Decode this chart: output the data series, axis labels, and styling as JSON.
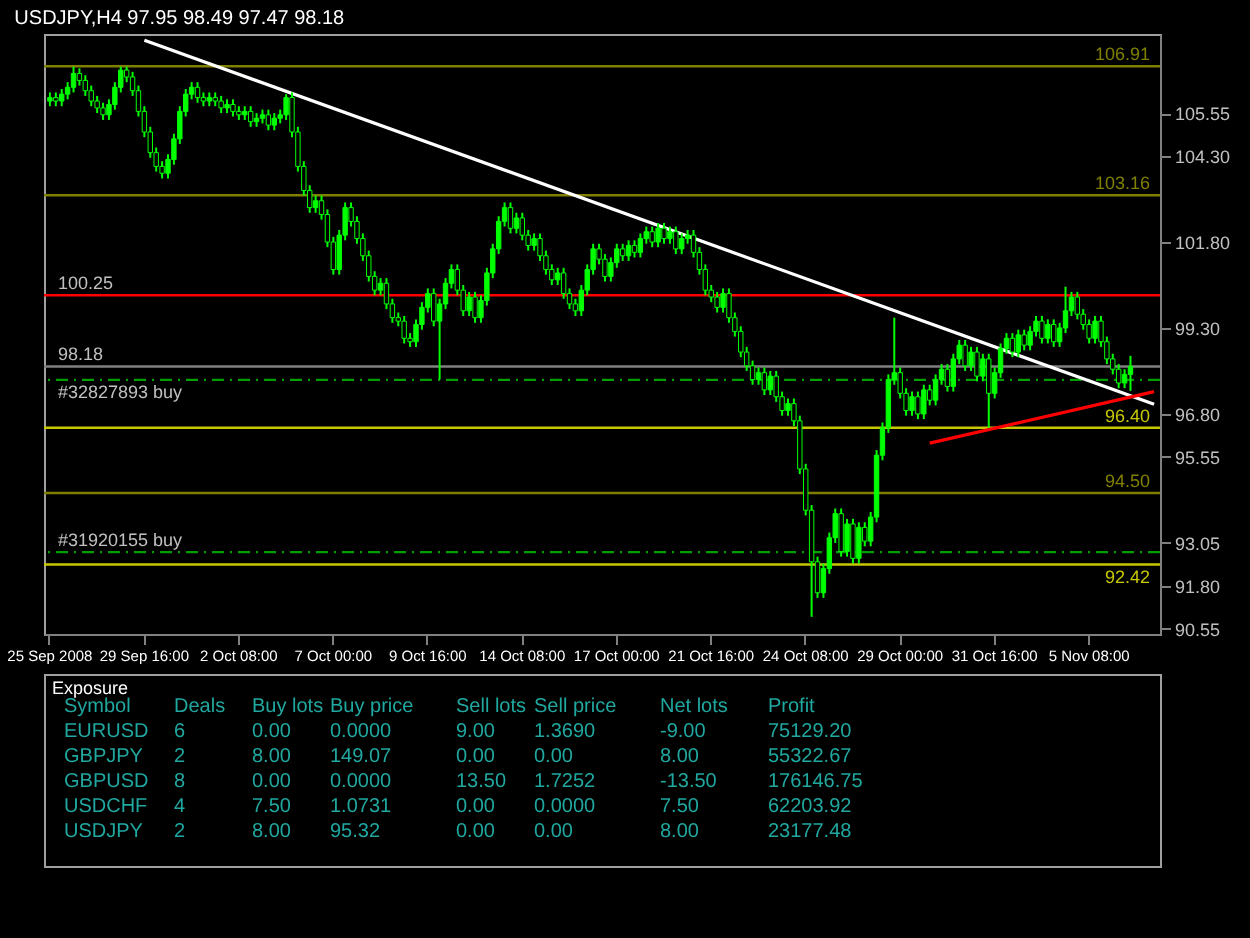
{
  "chart_data": [
    {
      "type": "candlestick",
      "title": "USDJPY,H4  97.95 98.49 97.47 98.18",
      "color": "#00ff00",
      "categories": [
        "25 Sep 2008",
        null,
        null,
        null,
        null,
        null,
        null,
        null,
        null,
        null,
        null,
        null,
        null,
        null,
        null,
        null,
        "29 Sep 16:00",
        null,
        null,
        null,
        null,
        null,
        null,
        null,
        null,
        null,
        null,
        null,
        null,
        null,
        null,
        null,
        "2 Oct 08:00",
        null,
        null,
        null,
        null,
        null,
        null,
        null,
        null,
        null,
        null,
        null,
        null,
        null,
        null,
        null,
        "7 Oct 00:00",
        null,
        null,
        null,
        null,
        null,
        null,
        null,
        null,
        null,
        null,
        null,
        null,
        null,
        null,
        null,
        "9 Oct 16:00",
        null,
        null,
        null,
        null,
        null,
        null,
        null,
        null,
        null,
        null,
        null,
        null,
        null,
        null,
        null,
        "14 Oct 08:00",
        null,
        null,
        null,
        null,
        null,
        null,
        null,
        null,
        null,
        null,
        null,
        null,
        null,
        null,
        null,
        "17 Oct 00:00",
        null,
        null,
        null,
        null,
        null,
        null,
        null,
        null,
        null,
        null,
        null,
        null,
        null,
        null,
        null,
        "21 Oct 16:00",
        null,
        null,
        null,
        null,
        null,
        null,
        null,
        null,
        null,
        null,
        null,
        null,
        null,
        null,
        null,
        "24 Oct 08:00",
        null,
        null,
        null,
        null,
        null,
        null,
        null,
        null,
        null,
        null,
        null,
        null,
        null,
        null,
        null,
        "29 Oct 00:00",
        null,
        null,
        null,
        null,
        null,
        null,
        null,
        null,
        null,
        null,
        null,
        null,
        null,
        null,
        null,
        "31 Oct 16:00",
        null,
        null,
        null,
        null,
        null,
        null,
        null,
        null,
        null,
        null,
        null,
        null,
        null,
        null,
        null,
        "5 Nov 08:00",
        null,
        null,
        null,
        null,
        null,
        null,
        null,
        null,
        null,
        null,
        null
      ],
      "ohlc": [
        [
          105.9,
          106.15,
          105.75,
          106.0
        ],
        [
          106.0,
          106.15,
          105.75,
          105.9
        ],
        [
          105.9,
          106.25,
          105.75,
          106.1
        ],
        [
          106.1,
          106.45,
          105.95,
          106.3
        ],
        [
          106.3,
          106.9,
          106.15,
          106.7
        ],
        [
          106.7,
          106.85,
          106.35,
          106.5
        ],
        [
          106.5,
          106.65,
          106.05,
          106.2
        ],
        [
          106.2,
          106.35,
          105.75,
          105.9
        ],
        [
          105.9,
          106.05,
          105.55,
          105.7
        ],
        [
          105.7,
          105.85,
          105.35,
          105.5
        ],
        [
          105.5,
          105.95,
          105.35,
          105.8
        ],
        [
          105.8,
          106.45,
          105.65,
          106.3
        ],
        [
          106.3,
          106.9,
          106.15,
          106.8
        ],
        [
          106.8,
          106.9,
          106.45,
          106.6
        ],
        [
          106.6,
          106.75,
          106.05,
          106.2
        ],
        [
          106.2,
          106.35,
          105.45,
          105.6
        ],
        [
          105.6,
          105.75,
          104.85,
          105.0
        ],
        [
          105.0,
          105.15,
          104.25,
          104.4
        ],
        [
          104.4,
          104.55,
          103.85,
          104.0
        ],
        [
          104.0,
          104.15,
          103.65,
          103.8
        ],
        [
          103.8,
          104.35,
          103.65,
          104.2
        ],
        [
          104.2,
          104.95,
          104.05,
          104.8
        ],
        [
          104.8,
          105.75,
          104.65,
          105.6
        ],
        [
          105.6,
          106.25,
          105.45,
          106.1
        ],
        [
          106.1,
          106.45,
          105.95,
          106.3
        ],
        [
          106.3,
          106.45,
          105.85,
          106.0
        ],
        [
          106.0,
          106.15,
          105.75,
          105.9
        ],
        [
          105.9,
          106.15,
          105.75,
          106.0
        ],
        [
          106.0,
          106.15,
          105.75,
          105.9
        ],
        [
          105.9,
          106.05,
          105.55,
          105.7
        ],
        [
          105.7,
          105.95,
          105.55,
          105.8
        ],
        [
          105.8,
          105.95,
          105.45,
          105.6
        ],
        [
          105.6,
          105.75,
          105.35,
          105.5
        ],
        [
          105.5,
          105.75,
          105.35,
          105.6
        ],
        [
          105.6,
          105.75,
          105.15,
          105.3
        ],
        [
          105.3,
          105.55,
          105.15,
          105.4
        ],
        [
          105.4,
          105.65,
          105.25,
          105.5
        ],
        [
          105.5,
          105.65,
          105.05,
          105.2
        ],
        [
          105.2,
          105.55,
          105.05,
          105.4
        ],
        [
          105.4,
          105.65,
          105.25,
          105.5
        ],
        [
          105.5,
          106.1,
          105.35,
          106.0
        ],
        [
          106.0,
          106.15,
          104.85,
          105.0
        ],
        [
          105.0,
          105.15,
          103.85,
          104.0
        ],
        [
          104.0,
          104.15,
          103.15,
          103.3
        ],
        [
          103.3,
          103.45,
          102.65,
          102.8
        ],
        [
          102.8,
          103.15,
          102.65,
          103.0
        ],
        [
          103.0,
          103.15,
          102.45,
          102.6
        ],
        [
          102.6,
          102.75,
          101.65,
          101.8
        ],
        [
          101.8,
          101.95,
          100.85,
          101.0
        ],
        [
          101.0,
          102.15,
          100.85,
          102.0
        ],
        [
          102.0,
          102.95,
          101.85,
          102.8
        ],
        [
          102.8,
          102.95,
          102.25,
          102.4
        ],
        [
          102.4,
          102.55,
          101.75,
          101.9
        ],
        [
          101.9,
          102.05,
          101.25,
          101.4
        ],
        [
          101.4,
          101.55,
          100.65,
          100.8
        ],
        [
          100.8,
          100.95,
          100.25,
          100.4
        ],
        [
          100.4,
          100.75,
          100.25,
          100.6
        ],
        [
          100.6,
          100.75,
          99.85,
          100.0
        ],
        [
          100.0,
          100.15,
          99.45,
          99.6
        ],
        [
          99.6,
          99.75,
          99.35,
          99.5
        ],
        [
          99.5,
          99.65,
          98.85,
          99.0
        ],
        [
          99.0,
          99.15,
          98.75,
          98.9
        ],
        [
          98.9,
          99.55,
          98.75,
          99.4
        ],
        [
          99.4,
          100.05,
          99.25,
          99.9
        ],
        [
          99.9,
          100.45,
          99.75,
          100.3
        ],
        [
          100.3,
          100.45,
          99.35,
          99.5
        ],
        [
          99.5,
          100.15,
          97.8,
          100.0
        ],
        [
          100.0,
          100.75,
          99.85,
          100.6
        ],
        [
          100.6,
          101.15,
          100.45,
          101.0
        ],
        [
          101.0,
          101.15,
          100.25,
          100.4
        ],
        [
          100.4,
          100.55,
          99.65,
          99.8
        ],
        [
          99.8,
          100.35,
          99.65,
          100.2
        ],
        [
          100.2,
          100.35,
          99.45,
          99.6
        ],
        [
          99.6,
          100.25,
          99.45,
          100.1
        ],
        [
          100.1,
          101.05,
          99.95,
          100.9
        ],
        [
          100.9,
          101.75,
          100.75,
          101.6
        ],
        [
          101.6,
          102.55,
          101.45,
          102.4
        ],
        [
          102.4,
          102.95,
          102.25,
          102.8
        ],
        [
          102.8,
          102.95,
          102.05,
          102.2
        ],
        [
          102.2,
          102.65,
          102.05,
          102.5
        ],
        [
          102.5,
          102.65,
          101.85,
          102.0
        ],
        [
          102.0,
          102.15,
          101.55,
          101.7
        ],
        [
          101.7,
          102.05,
          101.55,
          101.9
        ],
        [
          101.9,
          102.05,
          101.25,
          101.4
        ],
        [
          101.4,
          101.55,
          100.85,
          101.0
        ],
        [
          101.0,
          101.15,
          100.55,
          100.7
        ],
        [
          100.7,
          101.05,
          100.55,
          100.9
        ],
        [
          100.9,
          101.05,
          100.15,
          100.3
        ],
        [
          100.3,
          100.45,
          99.85,
          100.0
        ],
        [
          100.0,
          100.15,
          99.65,
          99.8
        ],
        [
          99.8,
          100.55,
          99.65,
          100.4
        ],
        [
          100.4,
          101.15,
          100.25,
          101.0
        ],
        [
          101.0,
          101.75,
          100.85,
          101.6
        ],
        [
          101.6,
          101.75,
          101.15,
          101.3
        ],
        [
          101.3,
          101.45,
          100.65,
          100.8
        ],
        [
          100.8,
          101.35,
          100.65,
          101.2
        ],
        [
          101.2,
          101.75,
          101.05,
          101.6
        ],
        [
          101.6,
          101.75,
          101.25,
          101.4
        ],
        [
          101.4,
          101.85,
          101.25,
          101.7
        ],
        [
          101.7,
          101.85,
          101.35,
          101.5
        ],
        [
          101.5,
          102.05,
          101.35,
          101.9
        ],
        [
          101.9,
          102.25,
          101.75,
          102.1
        ],
        [
          102.1,
          102.25,
          101.65,
          101.8
        ],
        [
          101.8,
          102.35,
          101.65,
          102.2
        ],
        [
          102.2,
          102.35,
          101.75,
          101.9
        ],
        [
          101.9,
          102.25,
          101.75,
          102.1
        ],
        [
          102.1,
          102.25,
          101.45,
          101.6
        ],
        [
          101.6,
          102.05,
          101.45,
          101.9
        ],
        [
          101.9,
          102.15,
          101.75,
          102.0
        ],
        [
          102.0,
          102.15,
          101.35,
          101.5
        ],
        [
          101.5,
          101.65,
          100.85,
          101.0
        ],
        [
          101.0,
          101.15,
          100.25,
          100.4
        ],
        [
          100.4,
          100.55,
          100.05,
          100.2
        ],
        [
          100.2,
          100.35,
          99.75,
          99.9
        ],
        [
          99.9,
          100.45,
          99.75,
          100.3
        ],
        [
          100.3,
          100.45,
          99.45,
          99.6
        ],
        [
          99.6,
          99.75,
          99.05,
          99.2
        ],
        [
          99.2,
          99.35,
          98.45,
          98.6
        ],
        [
          98.6,
          98.75,
          98.05,
          98.2
        ],
        [
          98.2,
          98.35,
          97.65,
          97.8
        ],
        [
          97.8,
          98.15,
          97.65,
          98.0
        ],
        [
          98.0,
          98.15,
          97.35,
          97.5
        ],
        [
          97.5,
          98.05,
          97.35,
          97.9
        ],
        [
          97.9,
          98.05,
          97.15,
          97.3
        ],
        [
          97.3,
          97.45,
          96.75,
          96.9
        ],
        [
          96.9,
          97.25,
          96.75,
          97.1
        ],
        [
          97.1,
          97.25,
          96.45,
          96.6
        ],
        [
          96.6,
          96.75,
          95.05,
          95.2
        ],
        [
          95.2,
          95.35,
          93.85,
          94.0
        ],
        [
          94.0,
          94.15,
          90.9,
          92.5
        ],
        [
          92.5,
          92.65,
          91.45,
          91.6
        ],
        [
          91.6,
          92.45,
          91.45,
          92.3
        ],
        [
          92.3,
          93.35,
          92.15,
          93.2
        ],
        [
          93.2,
          94.05,
          93.05,
          93.9
        ],
        [
          93.9,
          94.05,
          92.65,
          92.8
        ],
        [
          92.8,
          93.75,
          92.65,
          93.6
        ],
        [
          93.6,
          93.75,
          92.45,
          92.6
        ],
        [
          92.6,
          93.65,
          92.45,
          93.5
        ],
        [
          93.5,
          93.65,
          92.95,
          93.1
        ],
        [
          93.1,
          93.95,
          92.95,
          93.8
        ],
        [
          93.8,
          95.75,
          93.65,
          95.6
        ],
        [
          95.6,
          96.55,
          95.45,
          96.4
        ],
        [
          96.4,
          97.95,
          96.25,
          97.8
        ],
        [
          97.8,
          99.6,
          97.65,
          98.0
        ],
        [
          98.0,
          98.15,
          97.25,
          97.4
        ],
        [
          97.4,
          97.55,
          96.75,
          96.9
        ],
        [
          96.9,
          97.45,
          96.75,
          97.3
        ],
        [
          97.3,
          97.45,
          96.65,
          96.8
        ],
        [
          96.8,
          97.65,
          96.65,
          97.5
        ],
        [
          97.5,
          97.65,
          97.05,
          97.2
        ],
        [
          97.2,
          97.95,
          97.05,
          97.8
        ],
        [
          97.8,
          98.25,
          97.65,
          98.1
        ],
        [
          98.1,
          98.25,
          97.45,
          97.6
        ],
        [
          97.6,
          98.55,
          97.45,
          98.4
        ],
        [
          98.4,
          98.95,
          98.25,
          98.8
        ],
        [
          98.8,
          98.95,
          98.05,
          98.2
        ],
        [
          98.2,
          98.75,
          98.05,
          98.6
        ],
        [
          98.6,
          98.75,
          97.75,
          97.9
        ],
        [
          97.9,
          98.55,
          97.75,
          98.4
        ],
        [
          98.4,
          98.55,
          96.4,
          97.4
        ],
        [
          97.4,
          98.15,
          97.25,
          98.0
        ],
        [
          98.0,
          98.85,
          97.85,
          98.7
        ],
        [
          98.7,
          99.15,
          98.55,
          99.0
        ],
        [
          99.0,
          99.15,
          98.45,
          98.6
        ],
        [
          98.6,
          99.25,
          98.45,
          99.1
        ],
        [
          99.1,
          99.25,
          98.65,
          98.8
        ],
        [
          98.8,
          99.35,
          98.65,
          99.2
        ],
        [
          99.2,
          99.65,
          99.05,
          99.5
        ],
        [
          99.5,
          99.65,
          98.85,
          99.0
        ],
        [
          99.0,
          99.55,
          98.85,
          99.4
        ],
        [
          99.4,
          99.55,
          98.75,
          98.9
        ],
        [
          98.9,
          99.45,
          98.75,
          99.3
        ],
        [
          99.3,
          100.5,
          99.15,
          99.8
        ],
        [
          99.8,
          100.35,
          99.65,
          100.2
        ],
        [
          100.2,
          100.35,
          99.55,
          99.7
        ],
        [
          99.7,
          99.85,
          99.25,
          99.4
        ],
        [
          99.4,
          99.55,
          98.85,
          99.0
        ],
        [
          99.0,
          99.65,
          98.85,
          99.5
        ],
        [
          99.5,
          99.65,
          98.75,
          98.9
        ],
        [
          98.9,
          99.05,
          98.25,
          98.4
        ],
        [
          98.4,
          98.55,
          97.95,
          98.1
        ],
        [
          98.1,
          98.25,
          97.55,
          97.7
        ],
        [
          97.7,
          98.1,
          97.55,
          97.95
        ],
        [
          97.95,
          98.49,
          97.47,
          98.18
        ],
        null,
        null,
        null,
        null
      ],
      "series": [
        {
          "type": "line",
          "color": "#ffffff",
          "values": [
            null,
            null,
            null,
            null,
            null,
            null,
            null,
            null,
            null,
            null,
            null,
            null,
            null,
            null,
            null,
            null,
            107.67,
            null,
            null,
            null,
            null,
            null,
            null,
            null,
            null,
            null,
            null,
            null,
            null,
            null,
            null,
            null,
            null,
            null,
            null,
            null,
            null,
            null,
            null,
            null,
            null,
            null,
            null,
            null,
            null,
            null,
            null,
            null,
            null,
            null,
            null,
            null,
            null,
            null,
            null,
            null,
            null,
            null,
            null,
            null,
            null,
            null,
            null,
            null,
            null,
            null,
            null,
            null,
            null,
            null,
            null,
            null,
            null,
            null,
            null,
            null,
            null,
            null,
            null,
            null,
            null,
            null,
            null,
            null,
            null,
            null,
            null,
            null,
            null,
            null,
            null,
            null,
            null,
            null,
            null,
            null,
            null,
            null,
            null,
            null,
            null,
            null,
            null,
            null,
            null,
            null,
            null,
            null,
            null,
            null,
            null,
            null,
            null,
            null,
            null,
            null,
            null,
            null,
            null,
            null,
            null,
            null,
            null,
            null,
            null,
            null,
            null,
            null,
            null,
            null,
            null,
            null,
            null,
            null,
            null,
            null,
            null,
            null,
            null,
            null,
            null,
            null,
            null,
            null,
            null,
            null,
            null,
            null,
            null,
            null,
            null,
            null,
            null,
            null,
            null,
            null,
            null,
            null,
            null,
            null,
            null,
            null,
            null,
            null,
            null,
            null,
            null,
            null,
            null,
            null,
            null,
            null,
            null,
            null,
            null,
            null,
            null,
            null,
            null,
            null,
            null,
            null,
            null,
            null,
            null,
            null,
            null,
            97.08
          ]
        },
        {
          "type": "line",
          "color": "#ff0000",
          "values": [
            null,
            null,
            null,
            null,
            null,
            null,
            null,
            null,
            null,
            null,
            null,
            null,
            null,
            null,
            null,
            null,
            null,
            null,
            null,
            null,
            null,
            null,
            null,
            null,
            null,
            null,
            null,
            null,
            null,
            null,
            null,
            null,
            null,
            null,
            null,
            null,
            null,
            null,
            null,
            null,
            null,
            null,
            null,
            null,
            null,
            null,
            null,
            null,
            null,
            null,
            null,
            null,
            null,
            null,
            null,
            null,
            null,
            null,
            null,
            null,
            null,
            null,
            null,
            null,
            null,
            null,
            null,
            null,
            null,
            null,
            null,
            null,
            null,
            null,
            null,
            null,
            null,
            null,
            null,
            null,
            null,
            null,
            null,
            null,
            null,
            null,
            null,
            null,
            null,
            null,
            null,
            null,
            null,
            null,
            null,
            null,
            null,
            null,
            null,
            null,
            null,
            null,
            null,
            null,
            null,
            null,
            null,
            null,
            null,
            null,
            null,
            null,
            null,
            null,
            null,
            null,
            null,
            null,
            null,
            null,
            null,
            null,
            null,
            null,
            null,
            null,
            null,
            null,
            null,
            null,
            null,
            null,
            null,
            null,
            null,
            null,
            null,
            null,
            null,
            null,
            null,
            null,
            null,
            null,
            null,
            null,
            null,
            null,
            null,
            95.95,
            null,
            null,
            null,
            null,
            null,
            null,
            null,
            null,
            null,
            null,
            null,
            null,
            null,
            null,
            null,
            null,
            null,
            null,
            null,
            null,
            null,
            null,
            null,
            null,
            null,
            null,
            null,
            null,
            null,
            null,
            null,
            null,
            null,
            null,
            null,
            null,
            null,
            97.45
          ]
        }
      ],
      "ref_lines": [
        {
          "axis": "y",
          "value": 106.91,
          "label": "106.91",
          "color": "#808000"
        },
        {
          "axis": "y",
          "value": 103.16,
          "label": "103.16",
          "color": "#808000"
        },
        {
          "axis": "y",
          "value": 100.25,
          "label": "100.25",
          "color": "#ff0000"
        },
        {
          "axis": "y",
          "value": 98.18,
          "label": "98.18",
          "color": "#808080"
        },
        {
          "axis": "y",
          "value": 97.79,
          "label": "#32827893 buy",
          "color": "#00a000",
          "line_style": "dashed"
        },
        {
          "axis": "y",
          "value": 96.4,
          "label": "96.40",
          "color": "#c8c800"
        },
        {
          "axis": "y",
          "value": 94.5,
          "label": "94.50",
          "color": "#808000"
        },
        {
          "axis": "y",
          "value": 92.78,
          "label": "#31920155 buy",
          "color": "#00a000",
          "line_style": "dashed"
        },
        {
          "axis": "y",
          "value": 92.42,
          "label": "92.42",
          "color": "#c8c800"
        }
      ],
      "ylim": [
        90.4,
        107.85
      ],
      "yticks": [
        105.55,
        {
          "value": 104.3,
          "label": "104.30"
        },
        {
          "value": 101.8,
          "label": "101.80"
        },
        {
          "value": 99.3,
          "label": "99.30"
        },
        {
          "value": 96.8,
          "label": "96.80"
        },
        95.55,
        93.05,
        {
          "value": 91.8,
          "label": "91.80"
        },
        90.55
      ]
    },
    {
      "type": "other",
      "title": "Exposure",
      "annotations": [
        "Symbol",
        "Deals",
        "Buy lots",
        "Buy price",
        "Sell lots",
        "Sell price",
        "Net lots",
        "Profit",
        "EURUSD",
        "6",
        "0.00",
        "0.0000",
        "9.00",
        "1.3690",
        "-9.00",
        "75129.20",
        "GBPJPY",
        "2",
        "8.00",
        "149.07",
        "0.00",
        "0.00",
        "8.00",
        "55322.67",
        "GBPUSD",
        "8",
        "0.00",
        "0.0000",
        "13.50",
        "1.7252",
        "-13.50",
        "176146.75",
        "USDCHF",
        "4",
        "7.50",
        "1.0731",
        "0.00",
        "0.0000",
        "7.50",
        "62203.92",
        "USDJPY",
        "2",
        "8.00",
        "95.32",
        "0.00",
        "0.00",
        "8.00",
        "23177.48"
      ]
    }
  ]
}
